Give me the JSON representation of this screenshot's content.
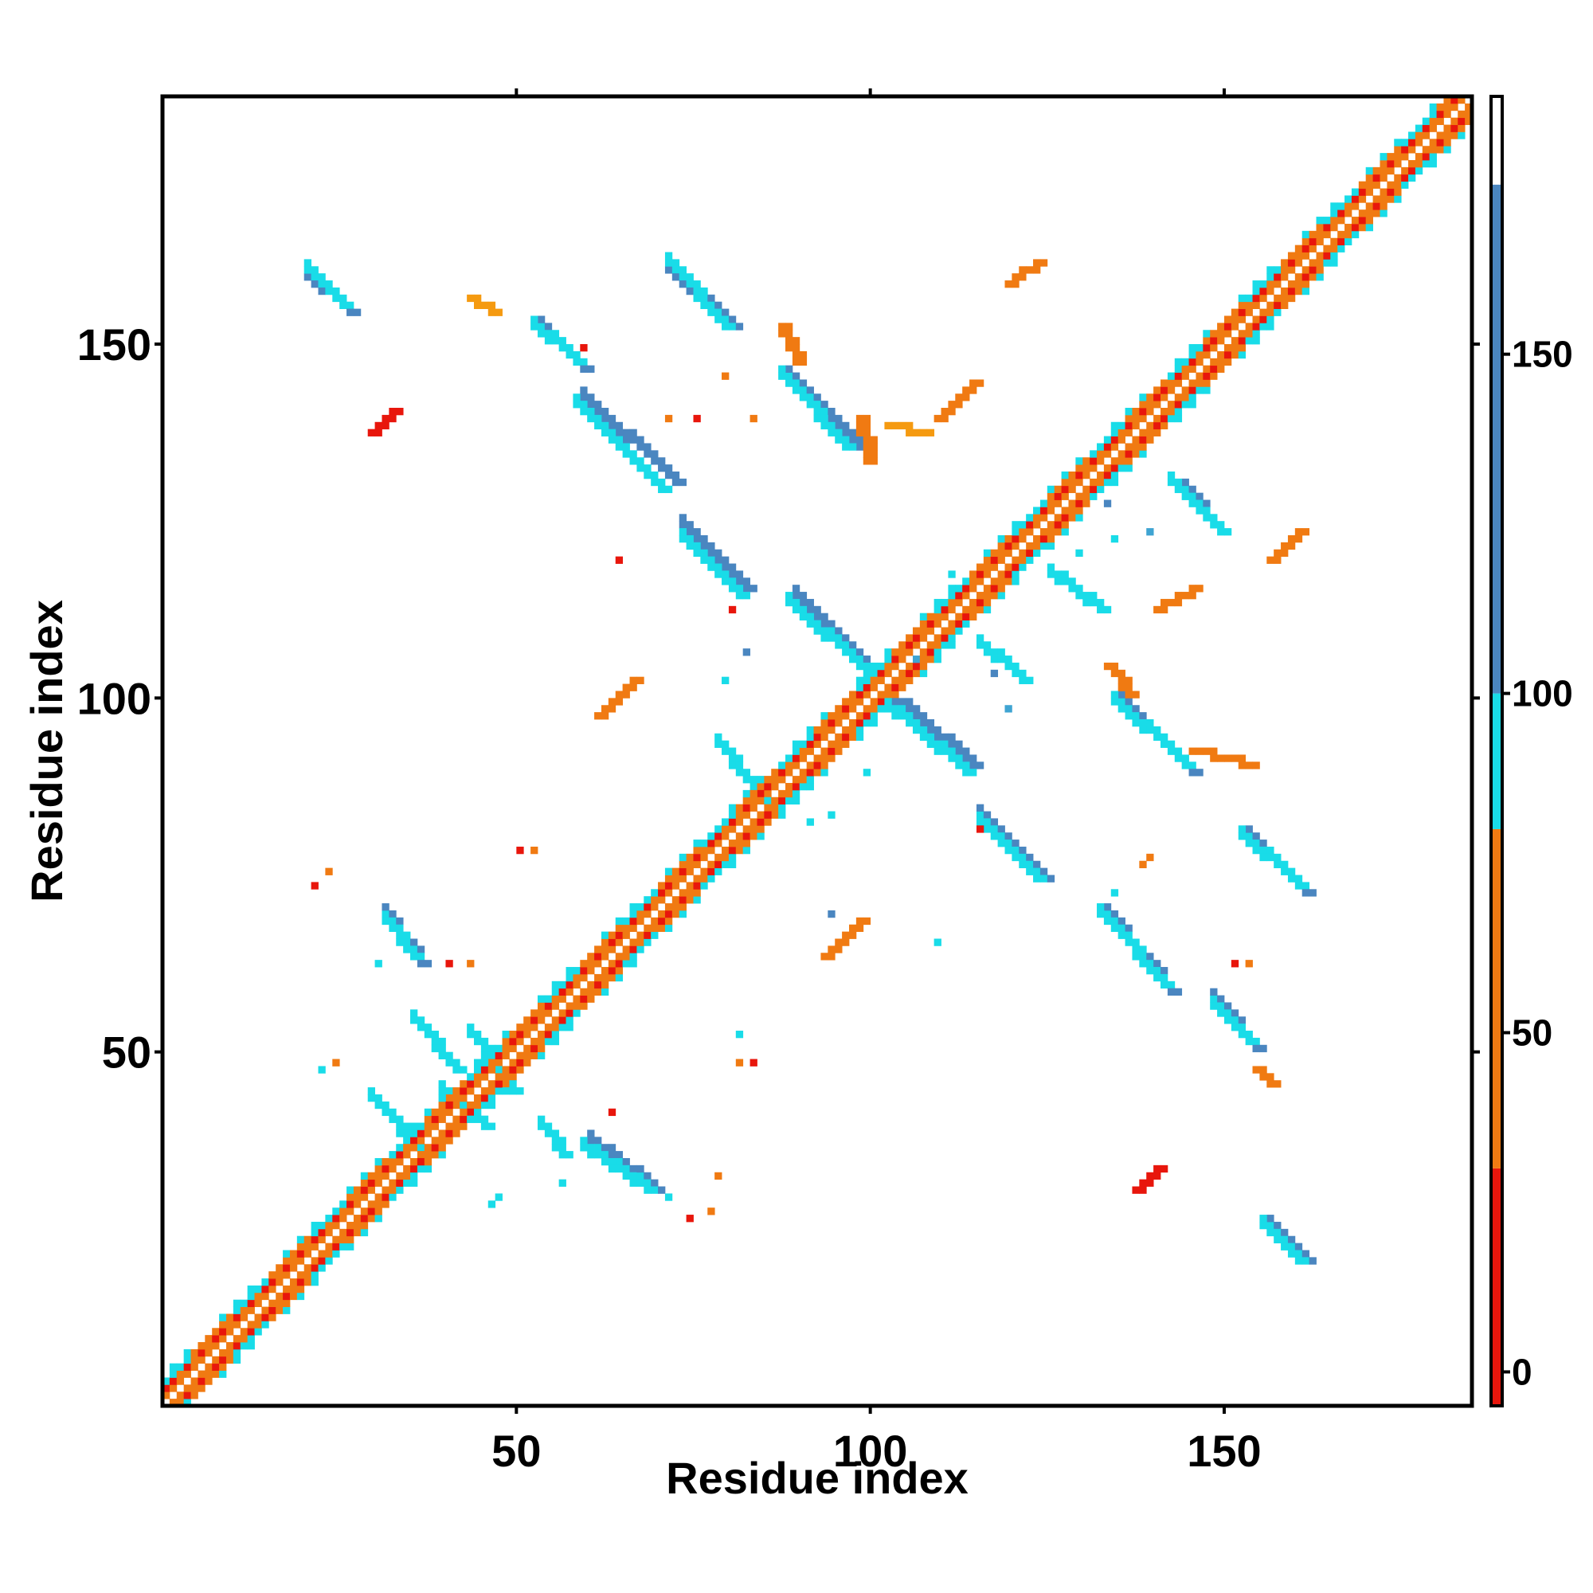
{
  "chart_data": {
    "type": "heatmap",
    "title": "",
    "xlabel": "Residue index",
    "ylabel": "Residue index",
    "xlim": [
      1,
      185
    ],
    "ylim": [
      1,
      185
    ],
    "xticks": [
      50,
      100,
      150
    ],
    "yticks": [
      50,
      100,
      150
    ],
    "colorbar": {
      "ticks": [
        0,
        50,
        100,
        150
      ],
      "range": [
        -5,
        188
      ],
      "bands": [
        {
          "from": -5,
          "to": 30,
          "color": "#e8160c"
        },
        {
          "from": 30,
          "to": 80,
          "color": "#f07a12"
        },
        {
          "from": 80,
          "to": 100,
          "color": "#19dce8"
        },
        {
          "from": 100,
          "to": 175,
          "color": "#4a86c0"
        },
        {
          "from": 175,
          "to": 188,
          "color": "#ffffff"
        }
      ]
    },
    "colors": {
      "red": "#e8160c",
      "orange": "#f07a12",
      "amber": "#f59a10",
      "cyan": "#19dce8",
      "blue": "#4a86c0",
      "steel": "#3fa4d2"
    },
    "diagonal": {
      "from": 1,
      "to": 185
    },
    "segments": [
      [
        21,
        160,
        27,
        155,
        "blue"
      ],
      [
        21,
        161,
        26,
        156,
        "cyan"
      ],
      [
        54,
        153,
        60,
        147,
        "blue"
      ],
      [
        53,
        153,
        59,
        148,
        "cyan"
      ],
      [
        72,
        161,
        81,
        153,
        "blue"
      ],
      [
        72,
        162,
        80,
        153,
        "cyan"
      ],
      [
        60,
        143,
        73,
        131,
        "blue"
      ],
      [
        59,
        142,
        71,
        130,
        "cyan"
      ],
      [
        89,
        146,
        99,
        136,
        "blue"
      ],
      [
        88,
        146,
        97,
        136,
        "cyan"
      ],
      [
        74,
        125,
        83,
        116,
        "blue"
      ],
      [
        74,
        123,
        82,
        115,
        "cyan"
      ],
      [
        90,
        115,
        101,
        104,
        "blue"
      ],
      [
        89,
        114,
        100,
        104,
        "cyan"
      ],
      [
        103,
        101,
        115,
        91,
        "blue"
      ],
      [
        102,
        100,
        114,
        90,
        "cyan"
      ],
      [
        136,
        100,
        146,
        90,
        "blue"
      ],
      [
        135,
        100,
        145,
        91,
        "cyan"
      ],
      [
        116,
        84,
        125,
        75,
        "blue"
      ],
      [
        116,
        83,
        124,
        75,
        "cyan"
      ],
      [
        154,
        81,
        162,
        73,
        "blue"
      ],
      [
        153,
        81,
        161,
        74,
        "cyan"
      ],
      [
        32,
        70,
        37,
        63,
        "blue"
      ],
      [
        32,
        69,
        36,
        64,
        "cyan"
      ],
      [
        134,
        70,
        143,
        59,
        "blue"
      ],
      [
        133,
        70,
        142,
        60,
        "cyan"
      ],
      [
        149,
        58,
        155,
        51,
        "blue"
      ],
      [
        149,
        57,
        154,
        52,
        "cyan"
      ],
      [
        61,
        38,
        70,
        31,
        "blue"
      ],
      [
        60,
        37,
        69,
        31,
        "cyan"
      ],
      [
        157,
        26,
        162,
        21,
        "blue"
      ],
      [
        156,
        26,
        161,
        21,
        "cyan"
      ],
      [
        145,
        130,
        149,
        125,
        "blue"
      ],
      [
        143,
        131,
        150,
        124,
        "cyan"
      ],
      [
        126,
        118,
        133,
        113,
        "cyan"
      ],
      [
        116,
        108,
        122,
        103,
        "cyan"
      ],
      [
        79,
        94,
        87,
        84,
        "cyan"
      ],
      [
        36,
        55,
        42,
        48,
        "cyan"
      ],
      [
        44,
        53,
        50,
        45,
        "cyan"
      ],
      [
        30,
        44,
        37,
        36,
        "cyan"
      ],
      [
        40,
        45,
        46,
        40,
        "cyan"
      ],
      [
        54,
        40,
        57,
        36,
        "cyan"
      ],
      [
        88,
        153,
        90,
        148,
        "orange"
      ],
      [
        99,
        140,
        100,
        134,
        "orange"
      ],
      [
        103,
        139,
        108,
        138,
        "amber"
      ],
      [
        134,
        105,
        137,
        101,
        "orange"
      ],
      [
        146,
        93,
        154,
        91,
        "orange"
      ],
      [
        155,
        48,
        157,
        46,
        "orange"
      ],
      [
        120,
        159,
        124,
        162,
        "orange"
      ],
      [
        110,
        140,
        115,
        145,
        "orange"
      ],
      [
        30,
        138,
        33,
        141,
        "red"
      ],
      [
        62,
        98,
        67,
        103,
        "orange"
      ],
      [
        94,
        64,
        99,
        69,
        "orange"
      ],
      [
        138,
        31,
        141,
        34,
        "red"
      ],
      [
        157,
        120,
        161,
        124,
        "orange"
      ],
      [
        141,
        113,
        146,
        116,
        "orange"
      ],
      [
        44,
        157,
        47,
        155,
        "amber"
      ]
    ],
    "cells": [
      [
        80,
        103,
        "cyan"
      ],
      [
        95,
        70,
        "blue"
      ],
      [
        120,
        99,
        "steel"
      ],
      [
        107,
        106,
        "steel"
      ],
      [
        110,
        66,
        "cyan"
      ],
      [
        57,
        32,
        "cyan"
      ],
      [
        64,
        42,
        "red"
      ],
      [
        79,
        33,
        "orange"
      ],
      [
        60,
        150,
        "red"
      ],
      [
        76,
        140,
        "red"
      ],
      [
        72,
        140,
        "orange"
      ],
      [
        51,
        79,
        "red"
      ],
      [
        53,
        79,
        "orange"
      ],
      [
        24,
        76,
        "orange"
      ],
      [
        22,
        74,
        "red"
      ],
      [
        41,
        63,
        "red"
      ],
      [
        44,
        63,
        "orange"
      ],
      [
        31,
        63,
        "cyan"
      ],
      [
        152,
        63,
        "red"
      ],
      [
        154,
        63,
        "orange"
      ],
      [
        82,
        53,
        "cyan"
      ],
      [
        82,
        49,
        "orange"
      ],
      [
        84,
        49,
        "red"
      ],
      [
        23,
        48,
        "cyan"
      ],
      [
        25,
        49,
        "orange"
      ],
      [
        48,
        30,
        "cyan"
      ],
      [
        47,
        29,
        "cyan"
      ],
      [
        78,
        28,
        "orange"
      ],
      [
        75,
        27,
        "red"
      ],
      [
        72,
        30,
        "cyan"
      ],
      [
        140,
        124,
        "steel"
      ],
      [
        134,
        128,
        "blue"
      ],
      [
        135,
        123,
        "cyan"
      ],
      [
        118,
        104,
        "blue"
      ],
      [
        130,
        121,
        "cyan"
      ],
      [
        112,
        118,
        "cyan"
      ],
      [
        100,
        90,
        "cyan"
      ],
      [
        95,
        84,
        "cyan"
      ],
      [
        92,
        83,
        "cyan"
      ],
      [
        83,
        107,
        "blue"
      ],
      [
        116,
        82,
        "red"
      ],
      [
        140,
        78,
        "orange"
      ],
      [
        139,
        77,
        "orange"
      ],
      [
        135,
        73,
        "cyan"
      ],
      [
        80,
        146,
        "orange"
      ],
      [
        84,
        140,
        "orange"
      ],
      [
        65,
        120,
        "red"
      ],
      [
        81,
        113,
        "red"
      ]
    ]
  }
}
